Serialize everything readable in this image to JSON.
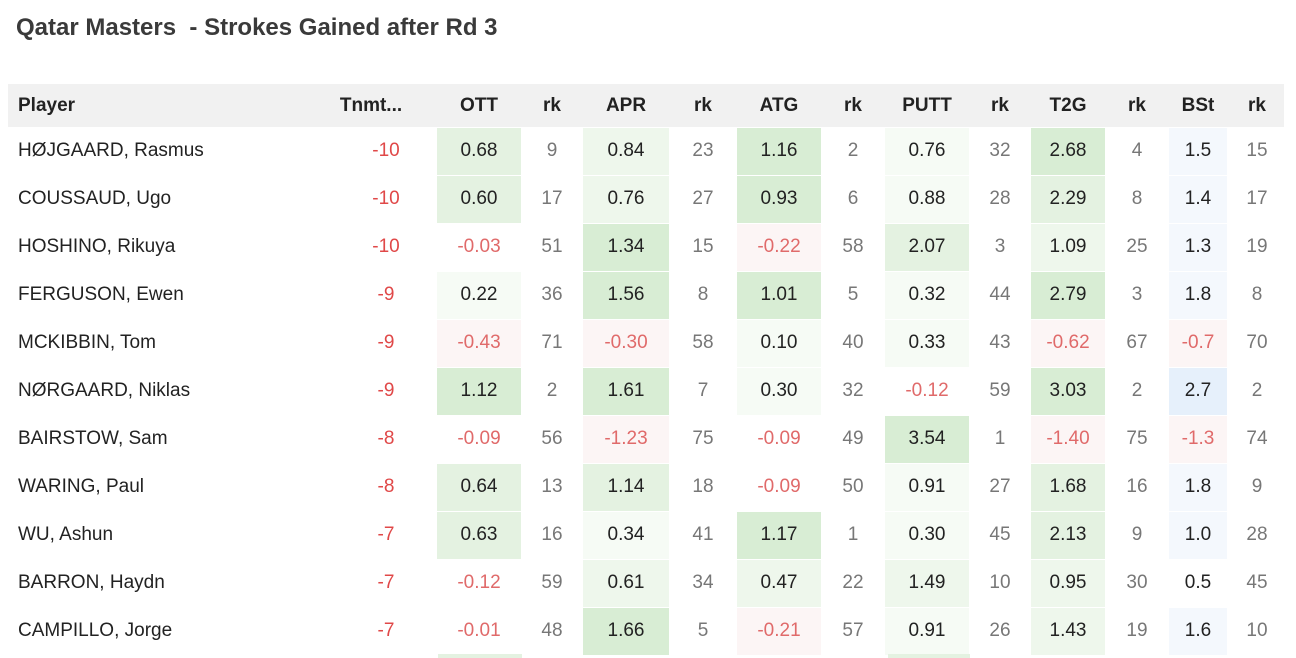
{
  "title": "Qatar Masters  - Strokes Gained after Rd 3",
  "headers": [
    "Player",
    "Tnmt...",
    "OTT",
    "rk",
    "APR",
    "rk",
    "ATG",
    "rk",
    "PUTT",
    "rk",
    "T2G",
    "rk",
    "BSt",
    "rk"
  ],
  "rows": [
    {
      "player": "HØJGAARD, Rasmus",
      "tnmt": "-10",
      "ott": "0.68",
      "ott_rk": "9",
      "apr": "0.84",
      "apr_rk": "23",
      "atg": "1.16",
      "atg_rk": "2",
      "putt": "0.76",
      "putt_rk": "32",
      "t2g": "2.68",
      "t2g_rk": "4",
      "bst": "1.5",
      "bst_rk": "15"
    },
    {
      "player": "COUSSAUD, Ugo",
      "tnmt": "-10",
      "ott": "0.60",
      "ott_rk": "17",
      "apr": "0.76",
      "apr_rk": "27",
      "atg": "0.93",
      "atg_rk": "6",
      "putt": "0.88",
      "putt_rk": "28",
      "t2g": "2.29",
      "t2g_rk": "8",
      "bst": "1.4",
      "bst_rk": "17"
    },
    {
      "player": "HOSHINO, Rikuya",
      "tnmt": "-10",
      "ott": "-0.03",
      "ott_rk": "51",
      "apr": "1.34",
      "apr_rk": "15",
      "atg": "-0.22",
      "atg_rk": "58",
      "putt": "2.07",
      "putt_rk": "3",
      "t2g": "1.09",
      "t2g_rk": "25",
      "bst": "1.3",
      "bst_rk": "19"
    },
    {
      "player": "FERGUSON, Ewen",
      "tnmt": "-9",
      "ott": "0.22",
      "ott_rk": "36",
      "apr": "1.56",
      "apr_rk": "8",
      "atg": "1.01",
      "atg_rk": "5",
      "putt": "0.32",
      "putt_rk": "44",
      "t2g": "2.79",
      "t2g_rk": "3",
      "bst": "1.8",
      "bst_rk": "8"
    },
    {
      "player": "MCKIBBIN, Tom",
      "tnmt": "-9",
      "ott": "-0.43",
      "ott_rk": "71",
      "apr": "-0.30",
      "apr_rk": "58",
      "atg": "0.10",
      "atg_rk": "40",
      "putt": "0.33",
      "putt_rk": "43",
      "t2g": "-0.62",
      "t2g_rk": "67",
      "bst": "-0.7",
      "bst_rk": "70"
    },
    {
      "player": "NØRGAARD, Niklas",
      "tnmt": "-9",
      "ott": "1.12",
      "ott_rk": "2",
      "apr": "1.61",
      "apr_rk": "7",
      "atg": "0.30",
      "atg_rk": "32",
      "putt": "-0.12",
      "putt_rk": "59",
      "t2g": "3.03",
      "t2g_rk": "2",
      "bst": "2.7",
      "bst_rk": "2"
    },
    {
      "player": "BAIRSTOW, Sam",
      "tnmt": "-8",
      "ott": "-0.09",
      "ott_rk": "56",
      "apr": "-1.23",
      "apr_rk": "75",
      "atg": "-0.09",
      "atg_rk": "49",
      "putt": "3.54",
      "putt_rk": "1",
      "t2g": "-1.40",
      "t2g_rk": "75",
      "bst": "-1.3",
      "bst_rk": "74"
    },
    {
      "player": "WARING, Paul",
      "tnmt": "-8",
      "ott": "0.64",
      "ott_rk": "13",
      "apr": "1.14",
      "apr_rk": "18",
      "atg": "-0.09",
      "atg_rk": "50",
      "putt": "0.91",
      "putt_rk": "27",
      "t2g": "1.68",
      "t2g_rk": "16",
      "bst": "1.8",
      "bst_rk": "9"
    },
    {
      "player": "WU, Ashun",
      "tnmt": "-7",
      "ott": "0.63",
      "ott_rk": "16",
      "apr": "0.34",
      "apr_rk": "41",
      "atg": "1.17",
      "atg_rk": "1",
      "putt": "0.30",
      "putt_rk": "45",
      "t2g": "2.13",
      "t2g_rk": "9",
      "bst": "1.0",
      "bst_rk": "28"
    },
    {
      "player": "BARRON, Haydn",
      "tnmt": "-7",
      "ott": "-0.12",
      "ott_rk": "59",
      "apr": "0.61",
      "apr_rk": "34",
      "atg": "0.47",
      "atg_rk": "22",
      "putt": "1.49",
      "putt_rk": "10",
      "t2g": "0.95",
      "t2g_rk": "30",
      "bst": "0.5",
      "bst_rk": "45"
    },
    {
      "player": "CAMPILLO, Jorge",
      "tnmt": "-7",
      "ott": "-0.01",
      "ott_rk": "48",
      "apr": "1.66",
      "apr_rk": "5",
      "atg": "-0.21",
      "atg_rk": "57",
      "putt": "0.91",
      "putt_rk": "26",
      "t2g": "1.43",
      "t2g_rk": "19",
      "bst": "1.6",
      "bst_rk": "10"
    }
  ],
  "colors": {
    "negative_text": "#e06a6a",
    "tnmt_text": "#e04848",
    "positive_fill": "#d8edd4",
    "negative_fill": "#fcf5f5",
    "bst_fill": "#e6f0fb",
    "header_bg": "#f1f1f1"
  }
}
